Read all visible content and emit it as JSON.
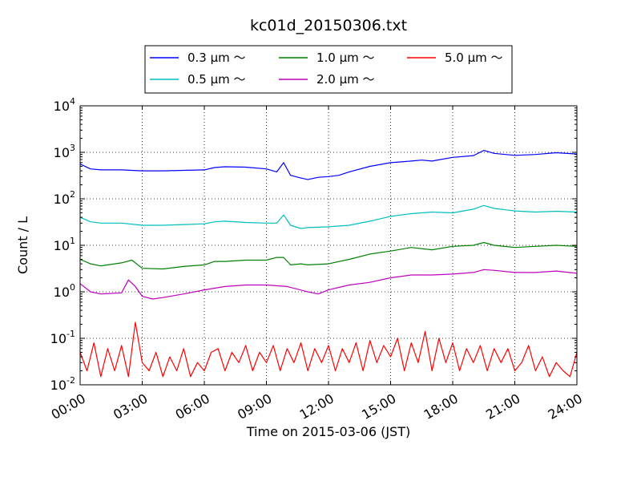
{
  "chart_data": {
    "type": "line",
    "title": "kc01d_20150306.txt",
    "xlabel": "Time on 2015-03-06 (JST)",
    "ylabel": "Count / L",
    "xlim": [
      "00:00",
      "24:00"
    ],
    "ylim": [
      0.01,
      10000
    ],
    "yscale": "log",
    "grid": true,
    "legend_position": "top-center",
    "x_ticks": [
      "00:00",
      "03:00",
      "06:00",
      "09:00",
      "12:00",
      "15:00",
      "18:00",
      "21:00",
      "24:00"
    ],
    "y_ticks": [
      {
        "base": "10",
        "exp": "-2",
        "value": 0.01
      },
      {
        "base": "10",
        "exp": "-1",
        "value": 0.1
      },
      {
        "base": "10",
        "exp": "0",
        "value": 1
      },
      {
        "base": "10",
        "exp": "1",
        "value": 10
      },
      {
        "base": "10",
        "exp": "2",
        "value": 100
      },
      {
        "base": "10",
        "exp": "3",
        "value": 1000
      },
      {
        "base": "10",
        "exp": "4",
        "value": 10000
      }
    ],
    "series": [
      {
        "name": "0.3 μm ～",
        "color": "#0000ff",
        "x": [
          "00:00",
          "00:30",
          "01:00",
          "02:00",
          "03:00",
          "04:00",
          "05:00",
          "06:00",
          "06:30",
          "07:00",
          "08:00",
          "09:00",
          "09:30",
          "09:50",
          "10:10",
          "10:40",
          "11:00",
          "11:30",
          "12:00",
          "12:30",
          "13:00",
          "14:00",
          "15:00",
          "16:00",
          "16:30",
          "17:00",
          "18:00",
          "19:00",
          "19:30",
          "20:00",
          "21:00",
          "22:00",
          "23:00",
          "24:00"
        ],
        "values": [
          560,
          440,
          420,
          420,
          400,
          400,
          410,
          420,
          470,
          490,
          480,
          440,
          380,
          600,
          320,
          280,
          260,
          290,
          300,
          320,
          380,
          500,
          600,
          650,
          680,
          650,
          780,
          850,
          1100,
          950,
          860,
          900,
          980,
          920
        ]
      },
      {
        "name": "0.5 μm ～",
        "color": "#00bfbf",
        "x": [
          "00:00",
          "00:30",
          "01:00",
          "02:00",
          "03:00",
          "04:00",
          "05:00",
          "06:00",
          "06:30",
          "07:00",
          "08:00",
          "09:00",
          "09:30",
          "09:50",
          "10:10",
          "10:40",
          "11:00",
          "12:00",
          "13:00",
          "14:00",
          "15:00",
          "16:00",
          "17:00",
          "18:00",
          "19:00",
          "19:30",
          "20:00",
          "21:00",
          "22:00",
          "23:00",
          "24:00"
        ],
        "values": [
          40,
          32,
          30,
          30,
          27,
          27,
          28,
          29,
          32,
          33,
          31,
          30,
          30,
          45,
          27,
          23,
          24,
          25,
          27,
          33,
          42,
          48,
          52,
          50,
          60,
          72,
          62,
          55,
          52,
          54,
          52
        ]
      },
      {
        "name": "1.0 μm ～",
        "color": "#008000",
        "x": [
          "00:00",
          "00:30",
          "01:00",
          "02:00",
          "02:30",
          "03:00",
          "04:00",
          "05:00",
          "06:00",
          "06:30",
          "07:00",
          "08:00",
          "09:00",
          "09:30",
          "09:50",
          "10:10",
          "10:40",
          "11:00",
          "12:00",
          "13:00",
          "14:00",
          "15:00",
          "16:00",
          "17:00",
          "18:00",
          "19:00",
          "19:30",
          "20:00",
          "21:00",
          "22:00",
          "23:00",
          "24:00"
        ],
        "values": [
          5,
          4,
          3.6,
          4.2,
          4.8,
          3.2,
          3.1,
          3.5,
          3.8,
          4.5,
          4.5,
          4.8,
          4.8,
          5.5,
          5.5,
          3.8,
          4,
          3.8,
          4,
          5,
          6.5,
          7.5,
          9,
          8,
          9.5,
          10,
          11.5,
          10,
          9,
          9.5,
          10,
          9.5
        ]
      },
      {
        "name": "2.0 μm ～",
        "color": "#bf00bf",
        "x": [
          "00:00",
          "00:30",
          "01:00",
          "02:00",
          "02:20",
          "02:40",
          "03:00",
          "03:30",
          "04:00",
          "05:00",
          "06:00",
          "07:00",
          "08:00",
          "09:00",
          "10:00",
          "11:00",
          "11:30",
          "12:00",
          "13:00",
          "14:00",
          "15:00",
          "16:00",
          "17:00",
          "18:00",
          "19:00",
          "19:30",
          "20:00",
          "21:00",
          "22:00",
          "23:00",
          "24:00"
        ],
        "values": [
          1.5,
          1,
          0.9,
          0.95,
          1.8,
          1.3,
          0.8,
          0.7,
          0.75,
          0.9,
          1.1,
          1.3,
          1.4,
          1.4,
          1.3,
          1,
          0.9,
          1.1,
          1.4,
          1.6,
          2,
          2.3,
          2.3,
          2.4,
          2.6,
          3,
          2.9,
          2.6,
          2.6,
          2.8,
          2.5
        ]
      },
      {
        "name": "5.0 μm ～",
        "color": "#ff0000",
        "x": [
          "00:00",
          "00:20",
          "00:40",
          "01:00",
          "01:20",
          "01:40",
          "02:00",
          "02:20",
          "02:40",
          "03:00",
          "03:20",
          "03:40",
          "04:00",
          "04:20",
          "04:40",
          "05:00",
          "05:20",
          "05:40",
          "06:00",
          "06:20",
          "06:40",
          "07:00",
          "07:20",
          "07:40",
          "08:00",
          "08:20",
          "08:40",
          "09:00",
          "09:20",
          "09:40",
          "10:00",
          "10:20",
          "10:40",
          "11:00",
          "11:20",
          "11:40",
          "12:00",
          "12:20",
          "12:40",
          "13:00",
          "13:20",
          "13:40",
          "14:00",
          "14:20",
          "14:40",
          "15:00",
          "15:20",
          "15:40",
          "16:00",
          "16:20",
          "16:40",
          "17:00",
          "17:20",
          "17:40",
          "18:00",
          "18:20",
          "18:40",
          "19:00",
          "19:20",
          "19:40",
          "20:00",
          "20:20",
          "20:40",
          "21:00",
          "21:20",
          "21:40",
          "22:00",
          "22:20",
          "22:40",
          "23:00",
          "23:20",
          "23:40",
          "24:00"
        ],
        "values": [
          0.05,
          0.02,
          0.08,
          0.015,
          0.06,
          0.02,
          0.07,
          0.015,
          0.22,
          0.03,
          0.02,
          0.05,
          0.015,
          0.04,
          0.02,
          0.06,
          0.015,
          0.03,
          0.02,
          0.05,
          0.06,
          0.02,
          0.05,
          0.03,
          0.07,
          0.02,
          0.05,
          0.03,
          0.07,
          0.02,
          0.06,
          0.03,
          0.08,
          0.02,
          0.06,
          0.03,
          0.07,
          0.02,
          0.06,
          0.03,
          0.08,
          0.02,
          0.09,
          0.03,
          0.07,
          0.04,
          0.1,
          0.02,
          0.08,
          0.03,
          0.14,
          0.02,
          0.1,
          0.03,
          0.08,
          0.02,
          0.06,
          0.03,
          0.07,
          0.02,
          0.06,
          0.03,
          0.06,
          0.02,
          0.03,
          0.07,
          0.02,
          0.04,
          0.015,
          0.03,
          0.02,
          0.015,
          0.05
        ]
      }
    ]
  }
}
